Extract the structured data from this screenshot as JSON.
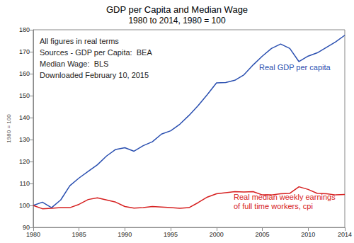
{
  "chart_data": {
    "type": "line",
    "title": "GDP per Capita and Median Wage",
    "subtitle": "1980 to 2014, 1980 = 100",
    "y_label": "1980 = 100",
    "annotations": [
      "All figures in real terms",
      "Sources - GDP per Capita:  BEA",
      "Median Wage:  BLS",
      "Downloaded February 10, 2015"
    ],
    "x": [
      1980,
      1981,
      1982,
      1983,
      1984,
      1985,
      1986,
      1987,
      1988,
      1989,
      1990,
      1991,
      1992,
      1993,
      1994,
      1995,
      1996,
      1997,
      1998,
      1999,
      2000,
      2001,
      2002,
      2003,
      2004,
      2005,
      2006,
      2007,
      2008,
      2009,
      2010,
      2011,
      2012,
      2013,
      2014
    ],
    "series": [
      {
        "name": "Real GDP per capita",
        "color": "#2a4fb0",
        "values": [
          100,
          101.5,
          99,
          102.5,
          109,
          112.5,
          115.5,
          118.5,
          122.5,
          125.5,
          126.3,
          124.7,
          127.2,
          129,
          132.5,
          134,
          137,
          141,
          145.5,
          150.5,
          155.8,
          156,
          157,
          159.5,
          164,
          168,
          171.5,
          173.5,
          171.5,
          165.5,
          168,
          169.5,
          172,
          174.5,
          177.5
        ]
      },
      {
        "name": "Real median weekly earnings\nof full time workers, cpi",
        "color": "#d62020",
        "values": [
          100,
          98.5,
          98.7,
          99,
          99,
          100.5,
          102.7,
          103.5,
          102.5,
          101.5,
          99.5,
          98.8,
          99,
          99.5,
          99.3,
          99,
          98.7,
          99,
          101.3,
          103.8,
          105.3,
          105.8,
          106.3,
          106.1,
          106.3,
          104.8,
          104.8,
          105.3,
          105.5,
          108.5,
          107.3,
          105.5,
          105.3,
          104.8,
          105
        ]
      }
    ],
    "xlim": [
      1980,
      2014
    ],
    "xticks": [
      1980,
      1985,
      1990,
      1995,
      2000,
      2005,
      2010,
      2014
    ],
    "ylim": [
      90,
      180
    ],
    "yticks": [
      90,
      100,
      110,
      120,
      130,
      140,
      150,
      160,
      170,
      180
    ],
    "grid": false
  }
}
